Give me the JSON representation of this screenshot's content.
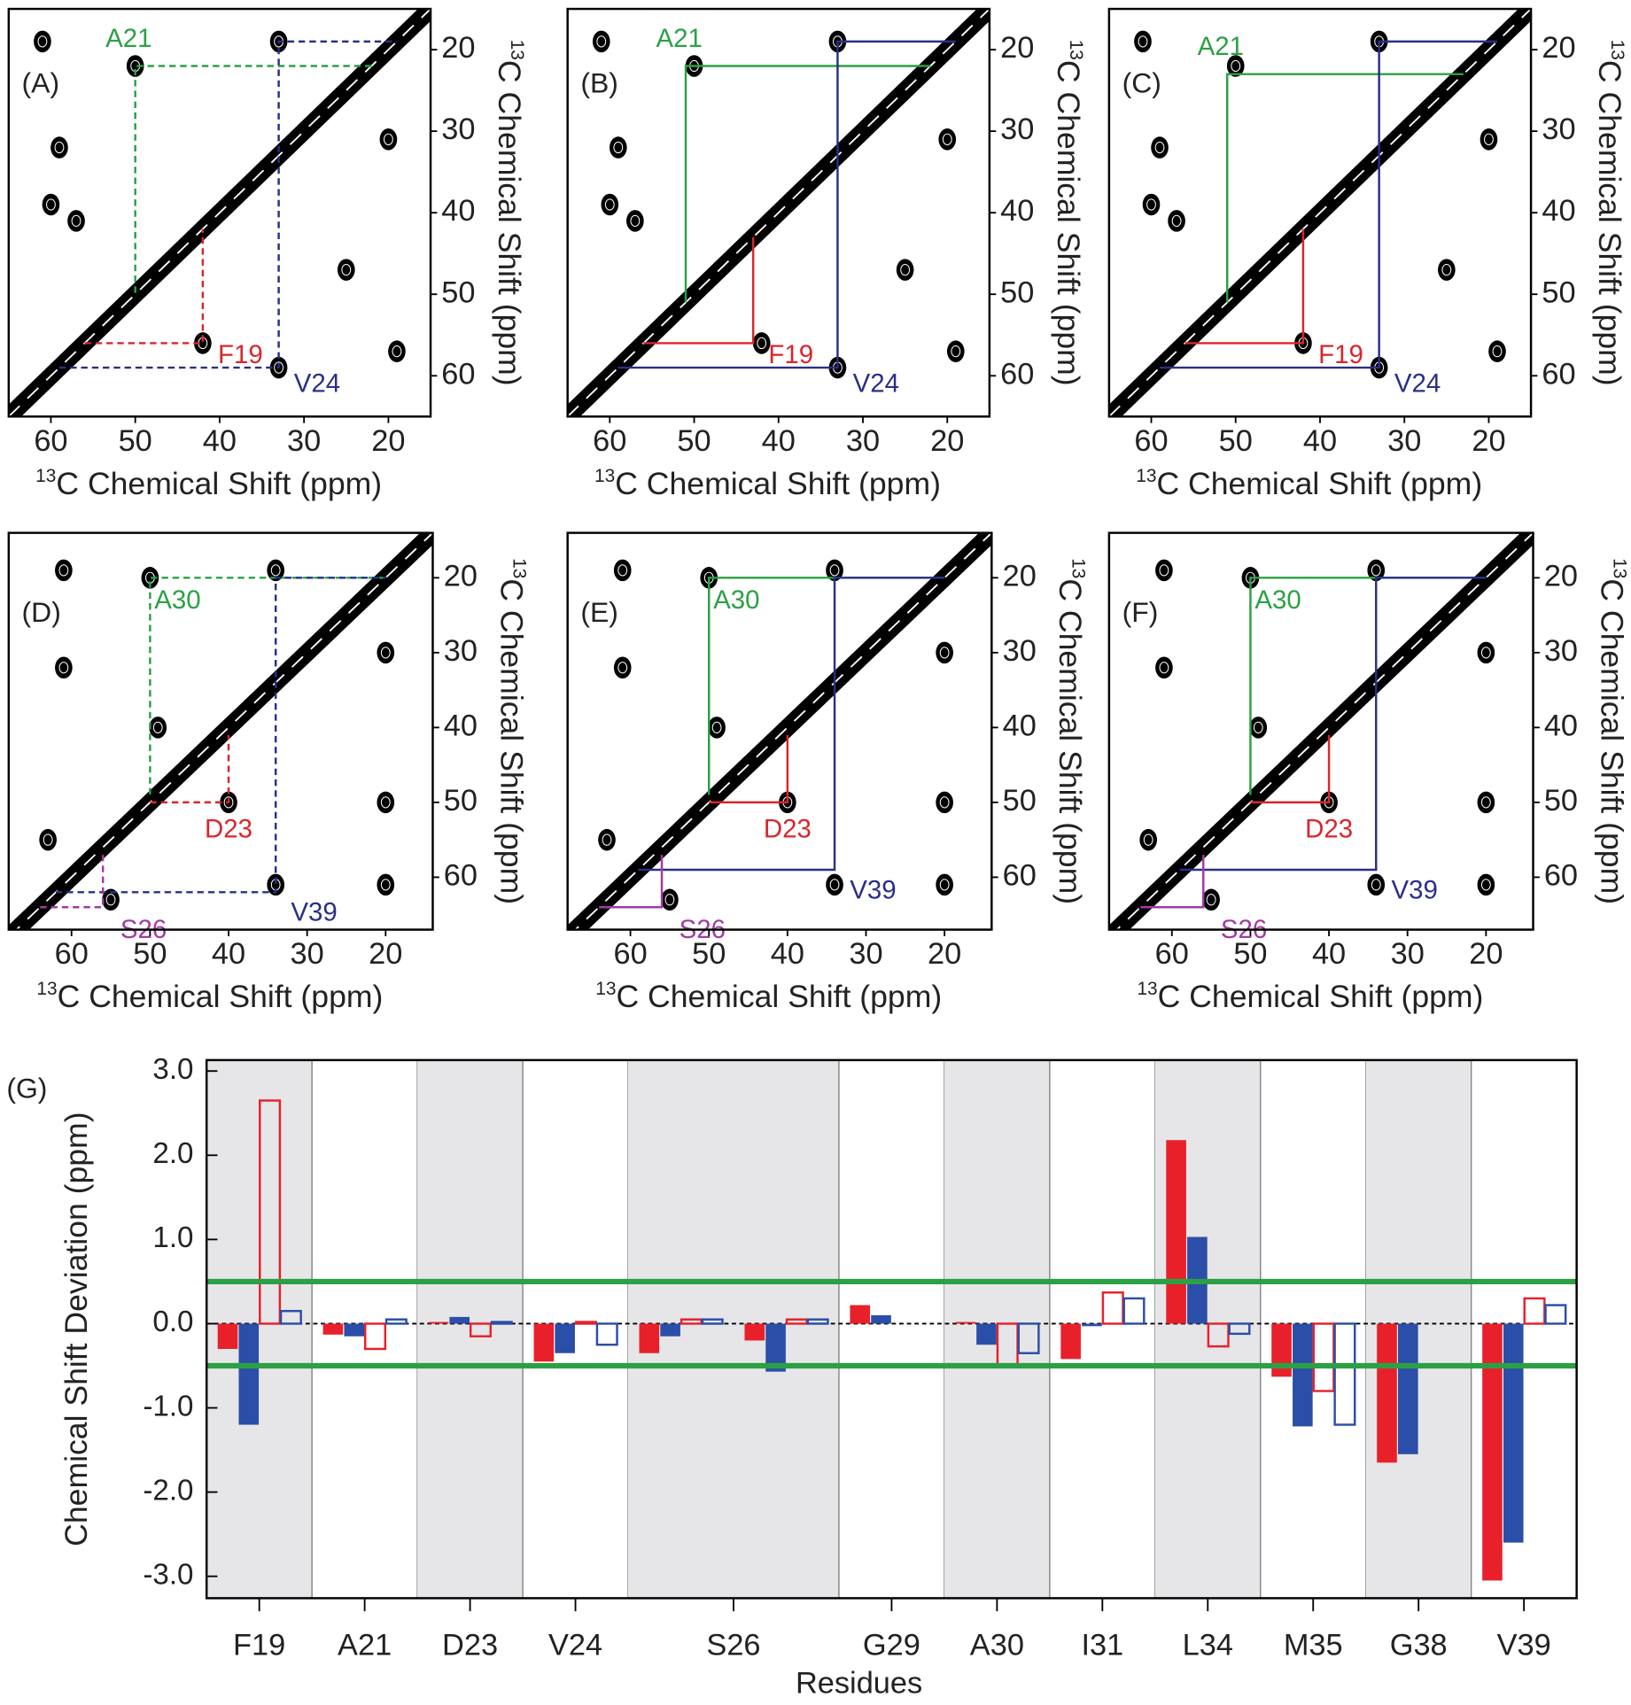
{
  "panels": [
    {
      "label": "(A)",
      "xlim": [
        65,
        15
      ],
      "ylim": [
        15,
        65
      ],
      "xticks": [
        60,
        50,
        40,
        30,
        20
      ],
      "yticks": [
        20,
        30,
        40,
        50,
        60
      ],
      "xlabel_sup": "13",
      "xlabel": "C Chemical Shift (ppm)",
      "ylabel_sup": "13",
      "ylabel": "C Chemical Shift (ppm)",
      "line_style": "dashed",
      "peaks": {
        "x": [
          61,
          50,
          33,
          59,
          60,
          57,
          42,
          33,
          20,
          25,
          19
        ],
        "y": [
          19,
          22,
          19,
          32,
          39,
          41,
          56,
          59,
          31,
          47,
          57
        ]
      },
      "assignments": [
        {
          "label": "A21",
          "color": "#2ca044",
          "x": [
            22,
            50,
            50
          ],
          "y": [
            22,
            22,
            50
          ]
        },
        {
          "label": "F19",
          "color": "#d9262b",
          "x": [
            56,
            42,
            42
          ],
          "y": [
            56,
            56,
            42
          ]
        },
        {
          "label": "V24",
          "color": "#2a2f86",
          "x": [
            59,
            33,
            33,
            19
          ],
          "y": [
            59,
            59,
            19,
            19
          ]
        }
      ]
    },
    {
      "label": "(B)",
      "xlim": [
        65,
        15
      ],
      "ylim": [
        15,
        65
      ],
      "xticks": [
        60,
        50,
        40,
        30,
        20
      ],
      "yticks": [
        20,
        30,
        40,
        50,
        60
      ],
      "xlabel_sup": "13",
      "xlabel": "C Chemical Shift (ppm)",
      "ylabel_sup": "13",
      "ylabel": "C Chemical Shift (ppm)",
      "line_style": "solid",
      "peaks": {
        "x": [
          61,
          50,
          33,
          59,
          60,
          57,
          42,
          33,
          20,
          25,
          19
        ],
        "y": [
          19,
          22,
          19,
          32,
          39,
          41,
          56,
          59,
          31,
          47,
          57
        ]
      },
      "assignments": [
        {
          "label": "A21",
          "color": "#2ca044",
          "x": [
            22,
            51,
            51
          ],
          "y": [
            22,
            22,
            51
          ]
        },
        {
          "label": "F19",
          "color": "#d9262b",
          "x": [
            56,
            43,
            43
          ],
          "y": [
            56,
            56,
            43
          ]
        },
        {
          "label": "V24",
          "color": "#2a2f86",
          "x": [
            59,
            33,
            33,
            19
          ],
          "y": [
            59,
            59,
            19,
            19
          ]
        }
      ]
    },
    {
      "label": "(C)",
      "xlim": [
        65,
        15
      ],
      "ylim": [
        15,
        65
      ],
      "xticks": [
        60,
        50,
        40,
        30,
        20
      ],
      "yticks": [
        20,
        30,
        40,
        50,
        60
      ],
      "xlabel_sup": "13",
      "xlabel": "C Chemical Shift (ppm)",
      "ylabel_sup": "13",
      "ylabel": "C Chemical Shift (ppm)",
      "line_style": "solid",
      "peaks": {
        "x": [
          61,
          50,
          33,
          59,
          60,
          57,
          42,
          33,
          20,
          25,
          19
        ],
        "y": [
          19,
          22,
          19,
          32,
          39,
          41,
          56,
          59,
          31,
          47,
          57
        ]
      },
      "assignments": [
        {
          "label": "A21",
          "color": "#2ca044",
          "x": [
            23,
            51,
            51
          ],
          "y": [
            23,
            23,
            51
          ]
        },
        {
          "label": "F19",
          "color": "#d9262b",
          "x": [
            56,
            42,
            42
          ],
          "y": [
            56,
            56,
            42
          ]
        },
        {
          "label": "V24",
          "color": "#2a2f86",
          "x": [
            59,
            33,
            33,
            19
          ],
          "y": [
            59,
            59,
            19,
            19
          ]
        }
      ]
    },
    {
      "label": "(D)",
      "xlim": [
        68,
        14
      ],
      "ylim": [
        14,
        67
      ],
      "xticks": [
        60,
        50,
        40,
        30,
        20
      ],
      "yticks": [
        20,
        30,
        40,
        50,
        60
      ],
      "xlabel_sup": "13",
      "xlabel": "C Chemical Shift (ppm)",
      "ylabel_sup": "13",
      "ylabel": "C Chemical Shift (ppm)",
      "line_style": "dashed",
      "peaks": {
        "x": [
          61,
          50,
          34,
          61,
          49,
          63,
          55,
          34,
          40,
          20,
          20,
          20
        ],
        "y": [
          19,
          20,
          19,
          32,
          40,
          55,
          63,
          61,
          50,
          30,
          50,
          61
        ]
      },
      "assignments": [
        {
          "label": "A30",
          "color": "#2ca044",
          "x": [
            20,
            50,
            50
          ],
          "y": [
            20,
            20,
            49
          ]
        },
        {
          "label": "D23",
          "color": "#d9262b",
          "x": [
            50,
            40,
            40
          ],
          "y": [
            50,
            50,
            41
          ]
        },
        {
          "label": "V39",
          "color": "#2a2f86",
          "x": [
            62,
            34,
            34,
            20
          ],
          "y": [
            62,
            62,
            20,
            20
          ]
        },
        {
          "label": "S26",
          "color": "#a23aa6",
          "x": [
            64,
            56,
            56
          ],
          "y": [
            64,
            64,
            57
          ]
        }
      ]
    },
    {
      "label": "(E)",
      "xlim": [
        68,
        14
      ],
      "ylim": [
        14,
        67
      ],
      "xticks": [
        60,
        50,
        40,
        30,
        20
      ],
      "yticks": [
        20,
        30,
        40,
        50,
        60
      ],
      "xlabel_sup": "13",
      "xlabel": "C Chemical Shift (ppm)",
      "ylabel_sup": "13",
      "ylabel": "C Chemical Shift (ppm)",
      "line_style": "solid",
      "peaks": {
        "x": [
          61,
          50,
          34,
          61,
          49,
          63,
          55,
          34,
          40,
          20,
          20,
          20
        ],
        "y": [
          19,
          20,
          19,
          32,
          40,
          55,
          63,
          61,
          50,
          30,
          50,
          61
        ]
      },
      "assignments": [
        {
          "label": "A30",
          "color": "#2ca044",
          "x": [
            20,
            50,
            50
          ],
          "y": [
            20,
            20,
            49
          ]
        },
        {
          "label": "D23",
          "color": "#d9262b",
          "x": [
            50,
            40,
            40
          ],
          "y": [
            50,
            50,
            41
          ]
        },
        {
          "label": "V39",
          "color": "#2a2f86",
          "x": [
            59,
            34,
            34,
            20
          ],
          "y": [
            59,
            59,
            20,
            20
          ]
        },
        {
          "label": "S26",
          "color": "#a23aa6",
          "x": [
            64,
            56,
            56
          ],
          "y": [
            64,
            64,
            57
          ]
        }
      ]
    },
    {
      "label": "(F)",
      "xlim": [
        68,
        14
      ],
      "ylim": [
        14,
        67
      ],
      "xticks": [
        60,
        50,
        40,
        30,
        20
      ],
      "yticks": [
        20,
        30,
        40,
        50,
        60
      ],
      "xlabel_sup": "13",
      "xlabel": "C Chemical Shift (ppm)",
      "ylabel_sup": "13",
      "ylabel": "C Chemical Shift (ppm)",
      "line_style": "solid",
      "peaks": {
        "x": [
          61,
          50,
          34,
          61,
          49,
          63,
          55,
          34,
          40,
          20,
          20,
          20
        ],
        "y": [
          19,
          20,
          19,
          32,
          40,
          55,
          63,
          61,
          50,
          30,
          50,
          61
        ]
      },
      "assignments": [
        {
          "label": "A30",
          "color": "#2ca044",
          "x": [
            20,
            50,
            50
          ],
          "y": [
            20,
            20,
            49
          ]
        },
        {
          "label": "D23",
          "color": "#d9262b",
          "x": [
            50,
            40,
            40
          ],
          "y": [
            50,
            50,
            41
          ]
        },
        {
          "label": "V39",
          "color": "#2a2f86",
          "x": [
            59,
            34,
            34,
            20
          ],
          "y": [
            59,
            59,
            20,
            20
          ]
        },
        {
          "label": "S26",
          "color": "#a23aa6",
          "x": [
            64,
            56,
            56
          ],
          "y": [
            64,
            64,
            57
          ]
        }
      ]
    }
  ],
  "chart_data": {
    "type": "bar",
    "panel_label": "(G)",
    "xlabel": "Residues",
    "ylabel": "Chemical Shift Deviation (ppm)",
    "categories": [
      "F19",
      "A21",
      "D23",
      "V24",
      "S26",
      null,
      "G29",
      "A30",
      "I31",
      "L34",
      "M35",
      "G38",
      "V39"
    ],
    "series": [
      {
        "color": "#e8202a",
        "style": "filled",
        "values": [
          -0.3,
          -0.13,
          0.02,
          -0.45,
          -0.35,
          -0.2,
          0.22,
          0.02,
          -0.42,
          2.18,
          -0.63,
          -1.65,
          -3.05
        ]
      },
      {
        "color": "#2b4ea8",
        "style": "filled",
        "values": [
          -1.2,
          -0.15,
          0.08,
          -0.35,
          -0.15,
          -0.57,
          0.1,
          -0.25,
          -0.03,
          1.03,
          -1.22,
          -1.55,
          -2.6
        ]
      },
      {
        "color": "#e8202a",
        "style": "open",
        "values": [
          2.65,
          -0.3,
          -0.15,
          0.02,
          0.05,
          0.05,
          null,
          -0.5,
          0.37,
          -0.27,
          -0.8,
          null,
          0.3
        ]
      },
      {
        "color": "#2b4ea8",
        "style": "open",
        "values": [
          0.15,
          0.05,
          0.02,
          -0.25,
          0.05,
          0.05,
          null,
          -0.35,
          0.3,
          -0.12,
          -1.2,
          null,
          0.22
        ]
      }
    ],
    "ylim": [
      -3.26,
      3.13
    ],
    "yticks": [
      {
        "value": 3,
        "label": "3.0"
      },
      {
        "value": 2,
        "label": "2.0"
      },
      {
        "value": 1,
        "label": "1.0"
      },
      {
        "value": 0,
        "label": "0.0"
      },
      {
        "value": -1,
        "label": "-1.0"
      },
      {
        "value": -2,
        "label": "-2.0"
      },
      {
        "value": -3,
        "label": "-3.0"
      }
    ],
    "thresholds": [
      0.5,
      -0.5
    ],
    "threshold_color": "#2ca044",
    "band_color": "#e6e6e8"
  }
}
